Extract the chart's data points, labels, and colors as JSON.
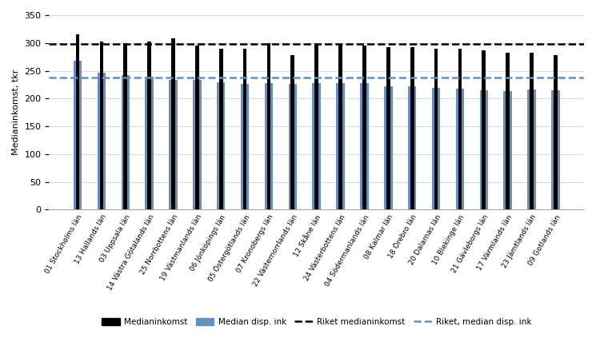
{
  "categories": [
    "01 Stockholms län",
    "13 Hallands län",
    "03 Uppsala län",
    "14 Västra Götalands län",
    "25 Norrbottens län",
    "19 Västmanlands län",
    "06 Jönköpings län",
    "05 Östergötlands län",
    "07 Kronobergs län",
    "22 Västernorrlands län",
    "12 Skåne län",
    "24 Västerbottens län",
    "04 Södermanlands län",
    "08 Kalmar län",
    "18 Örebro län",
    "20 Dalarnas län",
    "10 Blekinge län",
    "21 Gävleborgs län",
    "17 Värmlands län",
    "23 Jämtlands län",
    "09 Gotlands län"
  ],
  "medianinkomst": [
    315,
    302,
    300,
    303,
    308,
    295,
    290,
    290,
    300,
    278,
    298,
    298,
    295,
    292,
    292,
    290,
    290,
    286,
    282,
    283,
    278
  ],
  "median_disp": [
    268,
    246,
    242,
    239,
    233,
    233,
    229,
    226,
    227,
    226,
    228,
    228,
    228,
    222,
    222,
    219,
    217,
    215,
    213,
    216,
    215
  ],
  "riket_median": 298,
  "riket_disp": 238,
  "ylabel": "Medianinkomst, tkr",
  "ylim": [
    0,
    350
  ],
  "yticks": [
    0,
    50,
    100,
    150,
    200,
    250,
    300,
    350
  ],
  "bar_color_black": "#000000",
  "bar_color_blue": "#6090C4",
  "riket_median_color": "#000000",
  "riket_disp_color": "#6090C4",
  "legend_items": [
    "Medianinkomst",
    "Median disp. ink",
    "Riket medianinkomst",
    "Riket, median disp. ink"
  ],
  "bar_width": 0.35,
  "figsize": [
    7.45,
    4.23
  ],
  "dpi": 100
}
